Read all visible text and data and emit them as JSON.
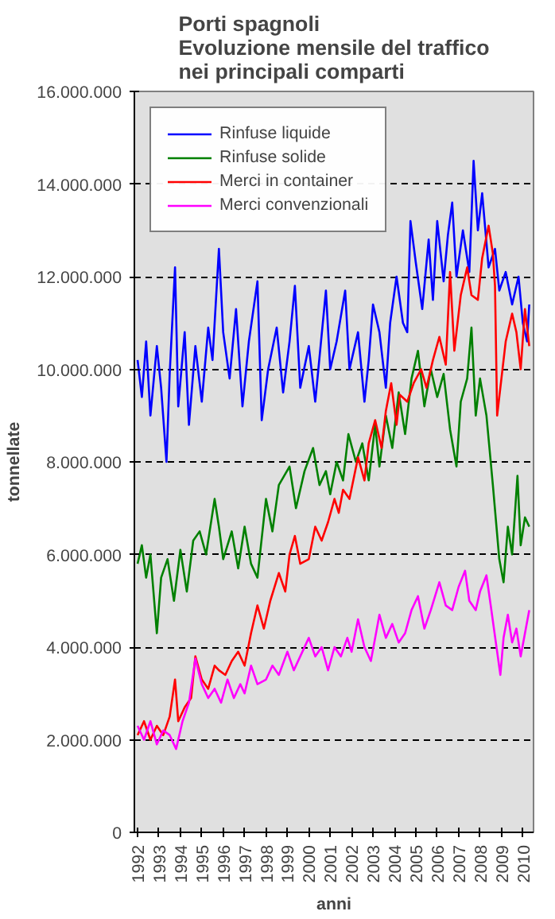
{
  "chart_data": {
    "type": "line",
    "title": "Porti spagnoli",
    "subtitle": "Evoluzione mensile del traffico nei principali comparti",
    "xlabel": "anni",
    "ylabel": "tonnellate",
    "xlim": [
      1991.85,
      2010.5
    ],
    "xticks": [
      1992,
      1993,
      1994,
      1995,
      1996,
      1997,
      1998,
      1999,
      2000,
      2001,
      2002,
      2003,
      2004,
      2005,
      2006,
      2007,
      2008,
      2009,
      2010
    ],
    "ylim": [
      0,
      16000000
    ],
    "yticks": [
      0,
      {
        "value": 2000000,
        "label": "2.000.000"
      },
      {
        "value": 4000000,
        "label": "4.000.000"
      },
      {
        "value": 6000000,
        "label": "6.000.000"
      },
      {
        "value": 8000000,
        "label": "8.000.000"
      },
      {
        "value": 10000000,
        "label": "10.000.000"
      },
      {
        "value": 12000000,
        "label": "12.000.000"
      },
      {
        "value": 14000000,
        "label": "14.000.000"
      },
      {
        "value": 16000000,
        "label": "16.000.000"
      }
    ],
    "grid": "y",
    "legend": "top",
    "marker": "none",
    "line_style": "solid",
    "series": [
      {
        "name": "Rinfuse liquide",
        "color": "#0000ff",
        "x": [
          1992.0,
          1992.2,
          1992.4,
          1992.6,
          1992.9,
          1993.1,
          1993.35,
          1993.5,
          1993.75,
          1993.9,
          1994.2,
          1994.4,
          1994.7,
          1995.0,
          1995.3,
          1995.5,
          1995.8,
          1996.0,
          1996.3,
          1996.6,
          1996.9,
          1997.2,
          1997.6,
          1997.8,
          1998.1,
          1998.5,
          1998.8,
          1999.1,
          1999.35,
          1999.6,
          2000.0,
          2000.3,
          2000.8,
          2001.0,
          2001.3,
          2001.7,
          2001.9,
          2002.3,
          2002.6,
          2002.8,
          2003.0,
          2003.3,
          2003.6,
          2003.8,
          2004.1,
          2004.4,
          2004.6,
          2004.75,
          2005.0,
          2005.3,
          2005.6,
          2005.8,
          2006.0,
          2006.3,
          2006.5,
          2006.7,
          2006.9,
          2007.2,
          2007.5,
          2007.7,
          2007.9,
          2008.1,
          2008.4,
          2008.7,
          2008.9,
          2009.2,
          2009.5,
          2009.8,
          2010.0,
          2010.2,
          2010.3
        ],
        "values": [
          10200000,
          9400000,
          10600000,
          9000000,
          10500000,
          9600000,
          8000000,
          9900000,
          12200000,
          9200000,
          10800000,
          8800000,
          10500000,
          9300000,
          10900000,
          10200000,
          12600000,
          10800000,
          9800000,
          11300000,
          9200000,
          10600000,
          11900000,
          8900000,
          10000000,
          10900000,
          9500000,
          10600000,
          11800000,
          9600000,
          10500000,
          9300000,
          11700000,
          10000000,
          10600000,
          11700000,
          10000000,
          10800000,
          9300000,
          10200000,
          11400000,
          10800000,
          9600000,
          11000000,
          12000000,
          11000000,
          10800000,
          13200000,
          12300000,
          11300000,
          12800000,
          11500000,
          13200000,
          11900000,
          12900000,
          13600000,
          12000000,
          13000000,
          12100000,
          14500000,
          13000000,
          13800000,
          12200000,
          12600000,
          11700000,
          12100000,
          11400000,
          12000000,
          11000000,
          10600000,
          11400000
        ]
      },
      {
        "name": "Rinfuse solide",
        "color": "#008000",
        "x": [
          1992.0,
          1992.2,
          1992.4,
          1992.6,
          1992.9,
          1993.1,
          1993.4,
          1993.7,
          1994.0,
          1994.3,
          1994.6,
          1994.9,
          1995.2,
          1995.6,
          1995.8,
          1996.0,
          1996.4,
          1996.7,
          1997.0,
          1997.3,
          1997.6,
          1998.0,
          1998.3,
          1998.6,
          1999.1,
          1999.4,
          1999.8,
          2000.2,
          2000.5,
          2000.8,
          2001.0,
          2001.3,
          2001.6,
          2001.85,
          2002.2,
          2002.5,
          2002.8,
          2003.1,
          2003.3,
          2003.6,
          2003.9,
          2004.2,
          2004.5,
          2004.8,
          2005.1,
          2005.4,
          2005.7,
          2006.0,
          2006.3,
          2006.6,
          2006.9,
          2007.1,
          2007.4,
          2007.6,
          2007.8,
          2008.0,
          2008.3,
          2008.6,
          2008.9,
          2009.1,
          2009.3,
          2009.5,
          2009.75,
          2009.9,
          2010.1,
          2010.3
        ],
        "values": [
          5800000,
          6200000,
          5500000,
          6000000,
          4300000,
          5500000,
          5900000,
          5000000,
          6100000,
          5200000,
          6300000,
          6500000,
          6000000,
          7200000,
          6600000,
          5900000,
          6500000,
          5700000,
          6600000,
          5800000,
          5500000,
          7200000,
          6500000,
          7500000,
          7900000,
          7000000,
          7800000,
          8300000,
          7500000,
          7800000,
          7300000,
          8000000,
          7600000,
          8600000,
          8000000,
          8400000,
          7600000,
          8800000,
          7900000,
          9000000,
          8300000,
          9500000,
          8600000,
          9800000,
          10400000,
          9200000,
          10000000,
          9400000,
          9900000,
          8700000,
          7900000,
          9300000,
          9800000,
          10900000,
          9000000,
          9800000,
          9000000,
          7500000,
          5900000,
          5400000,
          6600000,
          6000000,
          7700000,
          6200000,
          6800000,
          6600000
        ]
      },
      {
        "name": "Merci in container",
        "color": "#ff0000",
        "x": [
          1992.0,
          1992.3,
          1992.6,
          1992.9,
          1993.2,
          1993.5,
          1993.75,
          1993.9,
          1994.2,
          1994.5,
          1994.7,
          1995.0,
          1995.3,
          1995.6,
          1995.8,
          1996.1,
          1996.4,
          1996.7,
          1997.0,
          1997.3,
          1997.6,
          1997.9,
          1998.2,
          1998.6,
          1998.9,
          1999.1,
          1999.35,
          1999.6,
          2000.0,
          2000.3,
          2000.6,
          2000.9,
          2001.2,
          2001.4,
          2001.6,
          2001.9,
          2002.3,
          2002.6,
          2002.8,
          2003.1,
          2003.4,
          2003.6,
          2003.85,
          2004.1,
          2004.25,
          2004.6,
          2004.9,
          2005.25,
          2005.5,
          2005.8,
          2006.1,
          2006.4,
          2006.6,
          2006.8,
          2007.1,
          2007.4,
          2007.6,
          2007.9,
          2008.1,
          2008.4,
          2008.6,
          2008.7,
          2008.8,
          2009.0,
          2009.2,
          2009.5,
          2009.7,
          2009.9,
          2010.1,
          2010.3
        ],
        "values": [
          2100000,
          2400000,
          2000000,
          2300000,
          2100000,
          2500000,
          3300000,
          2400000,
          2700000,
          2900000,
          3800000,
          3300000,
          3100000,
          3600000,
          3500000,
          3400000,
          3700000,
          3900000,
          3600000,
          4300000,
          4900000,
          4400000,
          5000000,
          5600000,
          5200000,
          6000000,
          6400000,
          5800000,
          5900000,
          6600000,
          6300000,
          6700000,
          7200000,
          6900000,
          7400000,
          7200000,
          8100000,
          7600000,
          8400000,
          8900000,
          8300000,
          9100000,
          9700000,
          8800000,
          9450000,
          9300000,
          9700000,
          10000000,
          9600000,
          10200000,
          10700000,
          10100000,
          12100000,
          10400000,
          11600000,
          12200000,
          11600000,
          11500000,
          12400000,
          13100000,
          12500000,
          11800000,
          9000000,
          9800000,
          10600000,
          11200000,
          10800000,
          10000000,
          11300000,
          10500000
        ]
      },
      {
        "name": "Merci convenzionali",
        "color": "#ff00ff",
        "x": [
          1992.0,
          1992.3,
          1992.6,
          1992.9,
          1993.2,
          1993.5,
          1993.8,
          1994.1,
          1994.4,
          1994.7,
          1995.0,
          1995.3,
          1995.6,
          1995.9,
          1996.2,
          1996.5,
          1996.8,
          1997.0,
          1997.3,
          1997.6,
          1998.0,
          1998.3,
          1998.6,
          1999.0,
          1999.3,
          1999.6,
          2000.0,
          2000.3,
          2000.6,
          2000.9,
          2001.2,
          2001.5,
          2001.8,
          2002.0,
          2002.3,
          2002.6,
          2002.9,
          2003.3,
          2003.6,
          2003.9,
          2004.2,
          2004.5,
          2004.8,
          2005.1,
          2005.4,
          2005.7,
          2006.1,
          2006.4,
          2006.7,
          2007.0,
          2007.3,
          2007.5,
          2007.8,
          2008.0,
          2008.3,
          2008.5,
          2008.8,
          2008.95,
          2009.1,
          2009.3,
          2009.5,
          2009.7,
          2009.9,
          2010.1,
          2010.3
        ],
        "values": [
          2300000,
          2000000,
          2400000,
          1900000,
          2200000,
          2100000,
          1800000,
          2400000,
          2800000,
          3750000,
          3200000,
          2900000,
          3100000,
          2800000,
          3300000,
          2900000,
          3200000,
          3000000,
          3600000,
          3200000,
          3300000,
          3600000,
          3400000,
          3900000,
          3500000,
          3800000,
          4200000,
          3800000,
          4000000,
          3500000,
          4000000,
          3800000,
          4200000,
          3900000,
          4600000,
          4000000,
          3700000,
          4700000,
          4200000,
          4500000,
          4100000,
          4300000,
          4800000,
          5100000,
          4400000,
          4800000,
          5400000,
          4900000,
          4800000,
          5300000,
          5650000,
          5000000,
          4800000,
          5200000,
          5550000,
          4900000,
          3900000,
          3400000,
          4200000,
          4700000,
          4100000,
          4400000,
          3800000,
          4300000,
          4800000
        ]
      }
    ]
  }
}
